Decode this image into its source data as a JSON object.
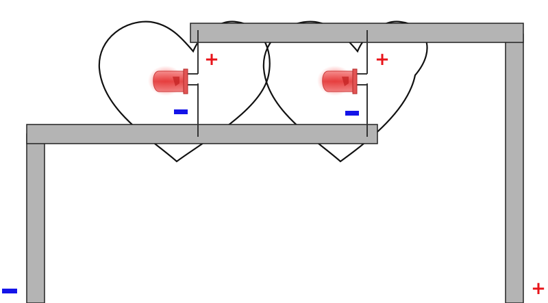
{
  "diagram": {
    "type": "circuit",
    "description_items": [
      "heart-left",
      "heart-right",
      "led-left",
      "led-right",
      "top-rail",
      "bottom-rail",
      "right-leg",
      "left-leg"
    ],
    "colors": {
      "rail_fill": "#b4b4b4",
      "rail_stroke": "#222222",
      "heart_stroke": "#111111",
      "wire": "#333333",
      "plus": "#e8141a",
      "minus": "#1414e8",
      "led_body": "#e84a4a",
      "led_glow": "#ff2b2b"
    },
    "labels": {
      "led_left_plus": "+",
      "led_left_minus": "−",
      "led_right_plus": "+",
      "led_right_minus": "−",
      "battery_minus": "−",
      "battery_plus": "+"
    }
  }
}
